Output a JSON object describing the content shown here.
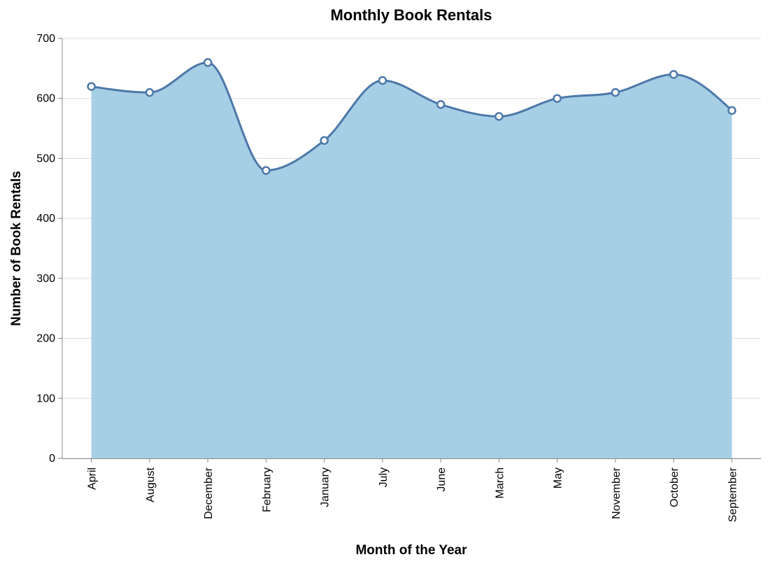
{
  "chart_data": {
    "type": "area",
    "title": "Monthly Book Rentals",
    "xlabel": "Month of the Year",
    "ylabel": "Number of Book Rentals",
    "categories": [
      "April",
      "August",
      "December",
      "February",
      "January",
      "July",
      "June",
      "March",
      "May",
      "November",
      "October",
      "September"
    ],
    "values": [
      620,
      610,
      660,
      480,
      530,
      630,
      590,
      570,
      600,
      610,
      640,
      580
    ],
    "ylim": [
      0,
      700
    ],
    "yticks": [
      0,
      100,
      200,
      300,
      400,
      500,
      600,
      700
    ],
    "grid": true,
    "colors": {
      "area_fill": "#a6cfe6",
      "line": "#4c78a8",
      "point_fill": "#ffffff"
    }
  }
}
